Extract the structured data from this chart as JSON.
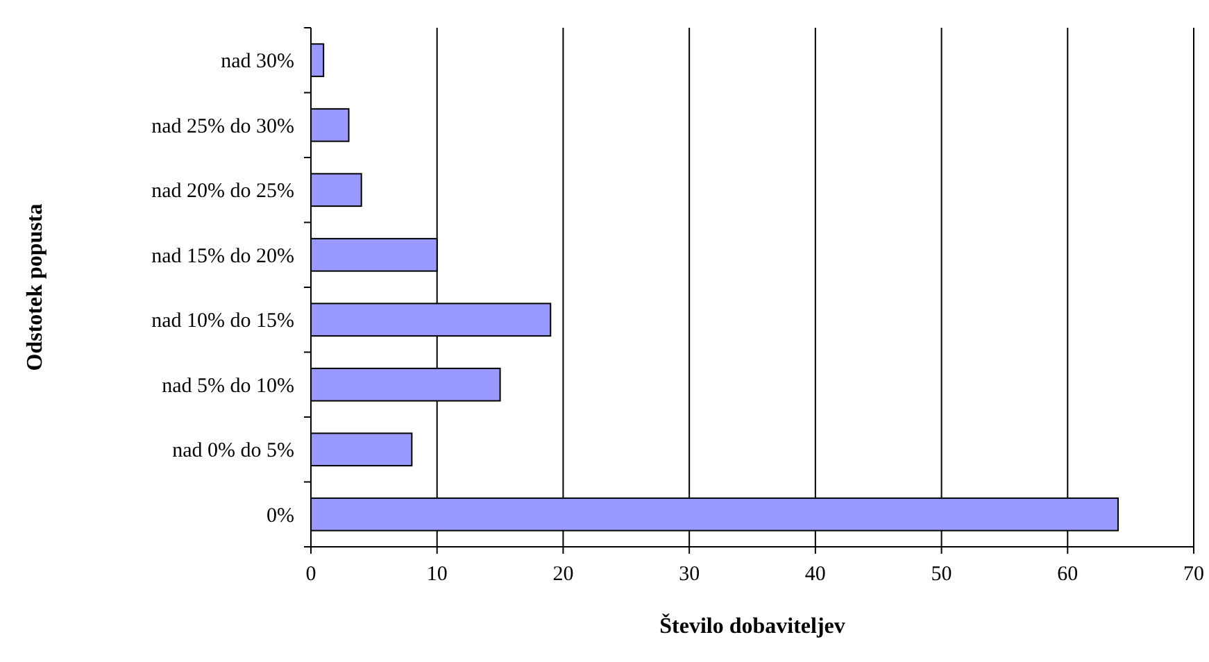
{
  "chart_data": {
    "type": "bar",
    "orientation": "horizontal",
    "xlabel": "Število dobaviteljev",
    "ylabel": "Odstotek popusta",
    "categories": [
      "nad 30%",
      "nad 25% do 30%",
      "nad 20% do 25%",
      "nad 15% do 20%",
      "nad 10% do 15%",
      "nad 5% do 10%",
      "nad 0% do 5%",
      "0%"
    ],
    "values": [
      1,
      3,
      4,
      10,
      19,
      15,
      8,
      64
    ],
    "color": "#9999ff",
    "xlim": [
      0,
      70
    ],
    "xticks": [
      0,
      10,
      20,
      30,
      40,
      50,
      60,
      70
    ],
    "grid": "x"
  }
}
